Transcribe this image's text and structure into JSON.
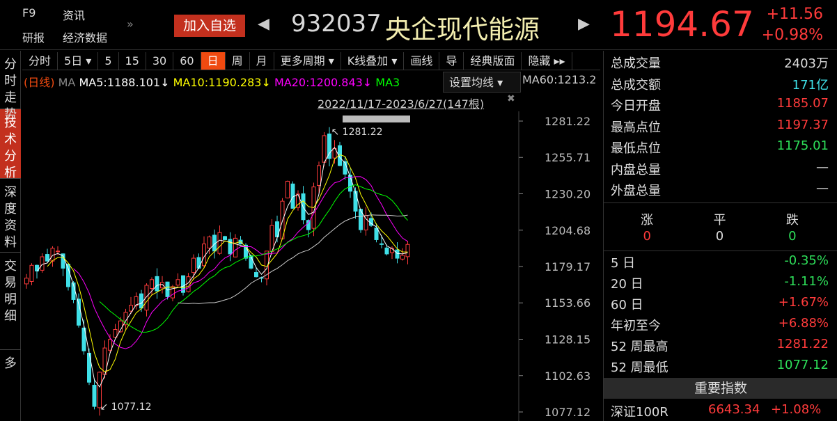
{
  "header": {
    "f9": "F9",
    "news": "资讯",
    "research": "研报",
    "econ": "经济数据",
    "more": "»",
    "add_watch": "加入自选",
    "prev": "◀",
    "next": "▶",
    "code": "932037",
    "name": "央企现代能源",
    "price": "1194.67",
    "change": "+11.56",
    "change_pct": "+0.98%"
  },
  "left_tabs": [
    "分时走势",
    "技术分析",
    "深度资料",
    "交易明细",
    "多"
  ],
  "toolbar": [
    "分时",
    "5日 ▾",
    "5",
    "15",
    "30",
    "60",
    "日",
    "周",
    "月",
    "更多周期 ▾",
    "K线叠加 ▾",
    "画线",
    "导",
    "经典版面",
    "隐藏 ▸▸"
  ],
  "active_period": "日",
  "ma": {
    "type": "(日线)",
    "ma": "MA",
    "ma5": "MA5:1188.101↓",
    "ma10": "MA10:1190.283↓",
    "ma20": "MA20:1200.843↓",
    "ma30": "MA3",
    "ma60": "MA60:1213.2",
    "set": "设置均线 ▾"
  },
  "range": "2022/11/17-2023/6/27(147根)",
  "colors": {
    "up": "#ff3b3b",
    "down": "#3fe0e8",
    "ma5": "#ffffff",
    "ma10": "#ffff00",
    "ma20": "#ff00ff",
    "ma30": "#00ff00",
    "ma60": "#cccccc"
  },
  "chart_data": {
    "type": "candlestick",
    "y_ticks": [
      1281.22,
      1255.71,
      1230.2,
      1204.68,
      1179.17,
      1153.66,
      1128.15,
      1102.63,
      1077.12
    ],
    "ylim": [
      1077.12,
      1281.22
    ],
    "high_label": "1281.22",
    "low_label": "1077.12",
    "closes": [
      1171,
      1180,
      1176,
      1186,
      1183,
      1192,
      1190,
      1178,
      1165,
      1156,
      1138,
      1120,
      1098,
      1081,
      1105,
      1122,
      1128,
      1135,
      1141,
      1147,
      1152,
      1158,
      1150,
      1166,
      1170,
      1162,
      1168,
      1158,
      1165,
      1170,
      1161,
      1172,
      1185,
      1178,
      1195,
      1200,
      1190,
      1203,
      1198,
      1188,
      1199,
      1195,
      1185,
      1178,
      1172,
      1171,
      1190,
      1208,
      1200,
      1225,
      1239,
      1220,
      1230,
      1212,
      1205,
      1235,
      1250,
      1271,
      1255,
      1262,
      1250,
      1244,
      1232,
      1218,
      1205,
      1215,
      1208,
      1198,
      1195,
      1188,
      1192,
      1185,
      1187,
      1194.67
    ]
  },
  "stats": [
    {
      "label": "总成交量",
      "value": "2403万",
      "color": "white"
    },
    {
      "label": "总成交额",
      "value": "171亿",
      "color": "cyan"
    },
    {
      "label": "今日开盘",
      "value": "1185.07",
      "color": "red"
    },
    {
      "label": "最高点位",
      "value": "1197.37",
      "color": "red"
    },
    {
      "label": "最低点位",
      "value": "1175.01",
      "color": "green"
    },
    {
      "label": "内盘总量",
      "value": "—",
      "color": "white"
    },
    {
      "label": "外盘总量",
      "value": "—",
      "color": "white"
    }
  ],
  "breadth": {
    "up_label": "涨",
    "flat_label": "平",
    "down_label": "跌",
    "up": "0",
    "flat": "0",
    "down": "0"
  },
  "perf": [
    {
      "label": "5 日",
      "value": "-0.35%",
      "color": "green"
    },
    {
      "label": "20 日",
      "value": "-1.11%",
      "color": "green"
    },
    {
      "label": "60 日",
      "value": "+1.67%",
      "color": "red"
    },
    {
      "label": "年初至今",
      "value": "+6.88%",
      "color": "red"
    },
    {
      "label": "52 周最高",
      "value": "1281.22",
      "color": "red"
    },
    {
      "label": "52 周最低",
      "value": "1077.12",
      "color": "green"
    }
  ],
  "index": {
    "title": "重要指数",
    "name": "深证100R",
    "value": "6643.34",
    "pct": "+1.08%"
  }
}
